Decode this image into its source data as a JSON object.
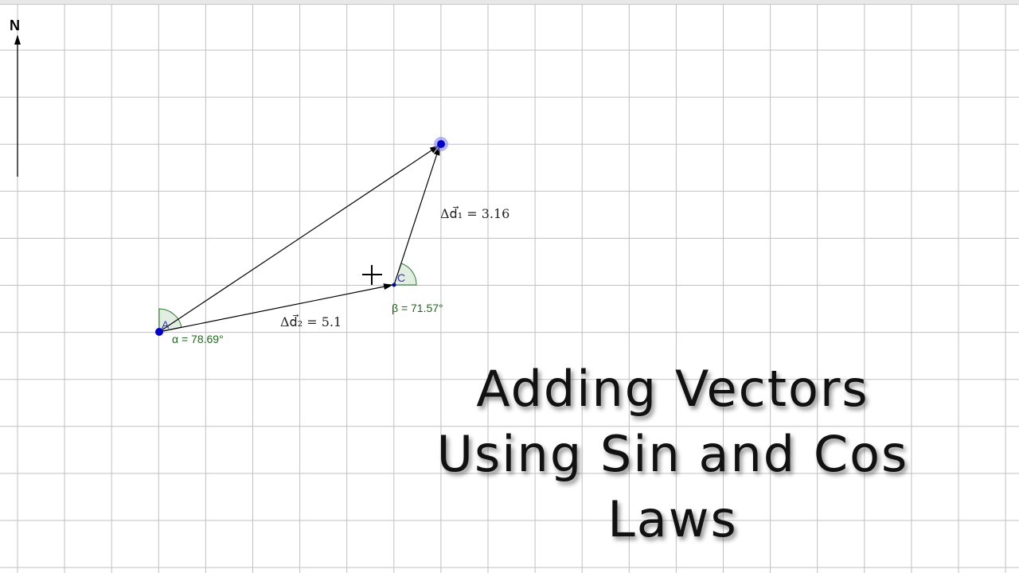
{
  "compass": {
    "label": "N"
  },
  "points": {
    "A": "A",
    "C": "C"
  },
  "vectors": {
    "d1": "Δd⃗₁ = 3.16",
    "d2": "Δd⃗₂ = 5.1"
  },
  "angles": {
    "alpha": "α = 78.69°",
    "beta": "β = 71.57°"
  },
  "title": {
    "line1": "Adding Vectors",
    "line2": "Using Sin and Cos",
    "line3": "Laws"
  },
  "colors": {
    "grid": "#c0c0c0",
    "point": "#0000cc",
    "angle_fill": "#e3eee3",
    "angle_stroke": "#2a7a2a"
  }
}
